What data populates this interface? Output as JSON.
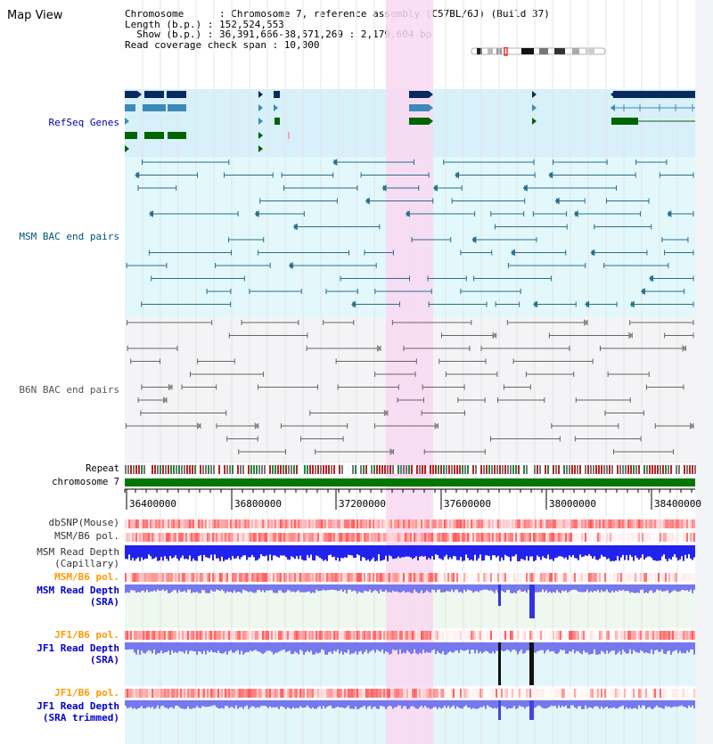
{
  "header": {
    "title": "Map View",
    "info_lines": [
      "Chromosome      : Chromosome 7, reference assembly (C57BL/6J) (Build 37)",
      "Length (b.p.) : 152,524,553",
      "  Show (b.p.) : 36,391,666-38,571,269 : 2,179,604 bp",
      "Read coverage check span : 10,000"
    ]
  },
  "tracks": {
    "refseq": {
      "label": "RefSeq Genes",
      "color": "#0000aa"
    },
    "msm_bac": {
      "label": "MSM BAC end pairs",
      "color": "#005577"
    },
    "b6n_bac": {
      "label": "B6N BAC end pairs",
      "color": "#555555"
    },
    "repeat": {
      "label": "Repeat",
      "color": "#000000"
    },
    "chromosome": {
      "label": "chromosome 7",
      "color": "#000000",
      "bar_color": "#007700"
    },
    "dbsnp": {
      "label": "dbSNP(Mouse)",
      "color": "#333333"
    },
    "msm_b6_pol": {
      "label": "MSM/B6 pol.",
      "color": "#333333"
    },
    "msm_depth_cap": {
      "label_line1": "MSM Read Depth",
      "label_line2": "(Capillary)",
      "color": "#333333"
    },
    "msm_b6_pol_sra": {
      "label": "MSM/B6 pol.",
      "color": "#ff9900"
    },
    "msm_depth_sra": {
      "label_line1": "MSM Read Depth",
      "label_line2": "(SRA)",
      "color": "#0000cc"
    },
    "jf1_b6_pol": {
      "label": "JF1/B6 pol.",
      "color": "#ff9900"
    },
    "jf1_depth_sra": {
      "label_line1": "JF1 Read Depth",
      "label_line2": "(SRA)",
      "color": "#0000cc"
    },
    "jf1_b6_pol_trim": {
      "label": "JF1/B6 pol.",
      "color": "#ff9900"
    },
    "jf1_depth_trim": {
      "label_line1": "JF1 Read Depth",
      "label_line2": "(SRA trimmed)",
      "color": "#0000cc"
    }
  },
  "ruler": {
    "ticks": [
      "36400000",
      "36800000",
      "37200000",
      "37600000",
      "38000000",
      "38400000"
    ]
  },
  "colors": {
    "highlight": "#f9d8f1",
    "refseq_bg": "#d8f0fa",
    "msm_bg": "#e2f8fb",
    "b6n_bg": "#f4f4f6",
    "gene_dark": "#082a5e",
    "gene_mid": "#3c8ab8",
    "gene_green": "#006400",
    "bac_msm": "#2a6e8c",
    "bac_b6n": "#666666",
    "depth_blue": "#2222ee",
    "depth_light": "#7777ee"
  }
}
